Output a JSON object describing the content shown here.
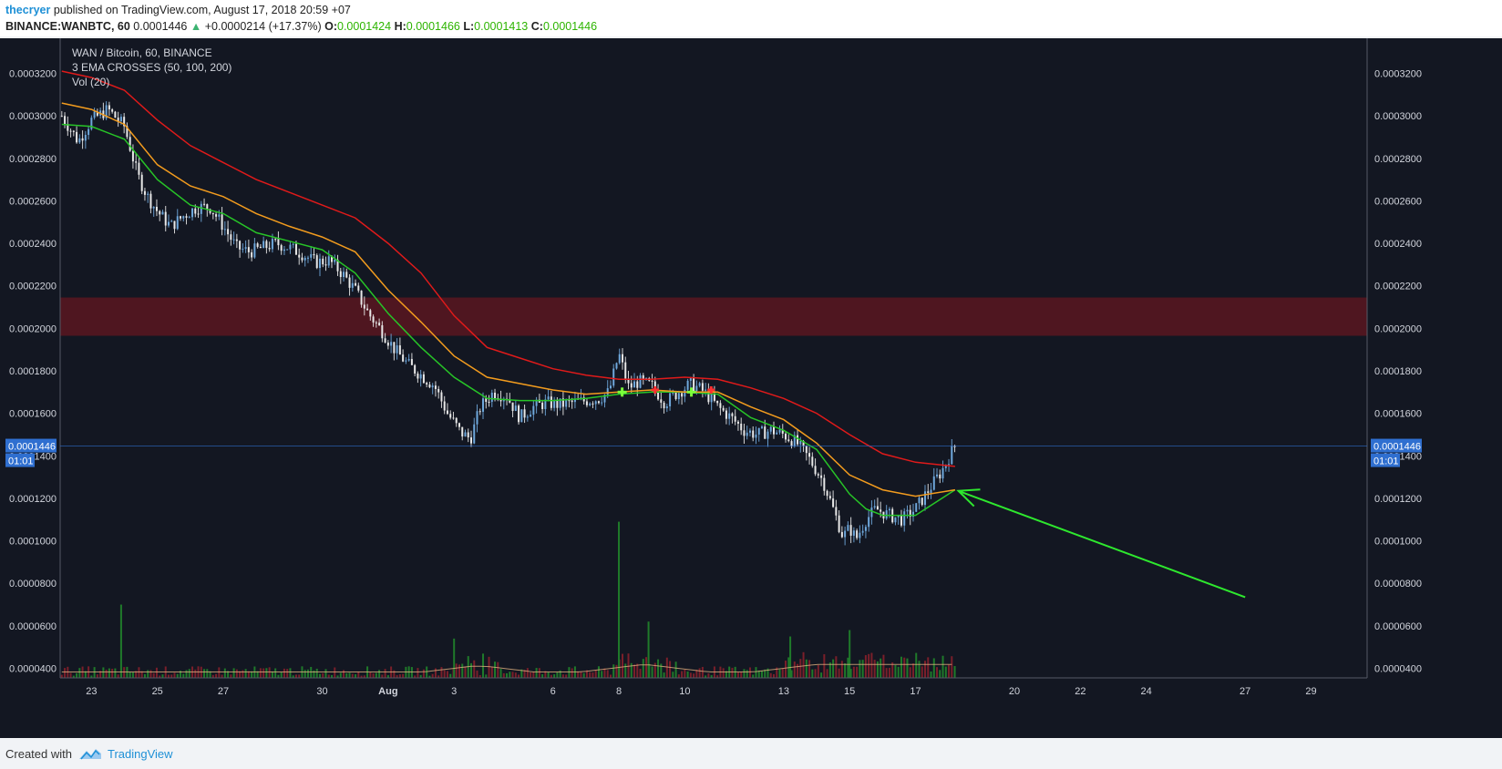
{
  "header": {
    "author": "thecryer",
    "published_text": "published on TradingView.com, August 17, 2018 20:59 +07",
    "symbol": "BINANCE:WANBTC, 60",
    "last": "0.0001446",
    "change_arrow": "▲",
    "change": "+0.0000214 (+17.37%)",
    "o_label": "O:",
    "o_value": "0.0001424",
    "h_label": "H:",
    "h_value": "0.0001466",
    "l_label": "L:",
    "l_value": "0.0001413",
    "c_label": "C:",
    "c_value": "0.0001446"
  },
  "legend": {
    "title": "WAN / Bitcoin, 60, BINANCE",
    "indicator": "3 EMA CROSSES (50, 100, 200)",
    "volume": "Vol (20)"
  },
  "price_tag": {
    "value": "0.0001446",
    "countdown": "01:01"
  },
  "footer": {
    "created_with": "Created with",
    "brand": "TradingView"
  },
  "colors": {
    "background": "#131722",
    "ema50": "#27c427",
    "ema100": "#f39c1e",
    "ema200": "#e01a1a",
    "resistance_zone": "#5a1620",
    "up_candle": "#6fa8dc",
    "down_candle": "#e8e8e8",
    "volume_up": "#1f7a2a",
    "volume_down": "#7a1f2a",
    "arrow": "#2ee82e",
    "price_tag": "#2f6fd0"
  },
  "chart_data": {
    "type": "line",
    "title": "WAN / Bitcoin, 60, BINANCE",
    "y_axis": {
      "ticks": [
        "0.0003200",
        "0.0003000",
        "0.0002800",
        "0.0002600",
        "0.0002400",
        "0.0002200",
        "0.0002000",
        "0.0001800",
        "0.0001600",
        "0.0001400",
        "0.0001200",
        "0.0001000",
        "0.0000800",
        "0.0000600",
        "0.0000400"
      ],
      "ylim": [
        3.55e-05,
        0.0003365
      ],
      "position": "both"
    },
    "x_axis": {
      "ticks": [
        {
          "label": "23",
          "day": 23
        },
        {
          "label": "25",
          "day": 25
        },
        {
          "label": "27",
          "day": 27
        },
        {
          "label": "30",
          "day": 30
        },
        {
          "label": "Aug",
          "day": 32,
          "bold": true
        },
        {
          "label": "3",
          "day": 34
        },
        {
          "label": "6",
          "day": 37
        },
        {
          "label": "8",
          "day": 39
        },
        {
          "label": "10",
          "day": 41
        },
        {
          "label": "13",
          "day": 44
        },
        {
          "label": "15",
          "day": 46
        },
        {
          "label": "17",
          "day": 48
        },
        {
          "label": "20",
          "day": 51
        },
        {
          "label": "22",
          "day": 53
        },
        {
          "label": "24",
          "day": 55
        },
        {
          "label": "27",
          "day": 58
        },
        {
          "label": "29",
          "day": 60
        }
      ],
      "xlim": [
        22.05,
        61.7
      ],
      "unit": "days since July 1, 2018"
    },
    "resistance_zone": [
      0.0001965,
      0.0002145
    ],
    "current_price": 0.0001446,
    "price": [
      [
        22.1,
        0.0003
      ],
      [
        22.6,
        0.000288
      ],
      [
        23.0,
        0.000298
      ],
      [
        23.5,
        0.000303
      ],
      [
        24.0,
        0.000295
      ],
      [
        24.4,
        0.000272
      ],
      [
        24.7,
        0.000262
      ],
      [
        25.0,
        0.000255
      ],
      [
        25.4,
        0.000248
      ],
      [
        25.8,
        0.000253
      ],
      [
        26.2,
        0.000257
      ],
      [
        26.6,
        0.000257
      ],
      [
        27.0,
        0.000248
      ],
      [
        27.4,
        0.000238
      ],
      [
        27.8,
        0.000236
      ],
      [
        28.2,
        0.000238
      ],
      [
        28.6,
        0.00024
      ],
      [
        29.0,
        0.000238
      ],
      [
        29.4,
        0.000235
      ],
      [
        29.8,
        0.000231
      ],
      [
        30.2,
        0.000232
      ],
      [
        30.6,
        0.000226
      ],
      [
        31.0,
        0.000218
      ],
      [
        31.4,
        0.000207
      ],
      [
        31.8,
        0.000199
      ],
      [
        32.2,
        0.00019
      ],
      [
        32.6,
        0.000183
      ],
      [
        33.0,
        0.000178
      ],
      [
        33.4,
        0.000173
      ],
      [
        33.8,
        0.00016
      ],
      [
        34.2,
        0.000151
      ],
      [
        34.5,
        0.000148
      ],
      [
        34.8,
        0.000163
      ],
      [
        35.2,
        0.00017
      ],
      [
        35.6,
        0.000168
      ],
      [
        36.0,
        0.000158
      ],
      [
        36.4,
        0.000163
      ],
      [
        36.8,
        0.000165
      ],
      [
        37.2,
        0.000164
      ],
      [
        37.6,
        0.000165
      ],
      [
        38.0,
        0.000166
      ],
      [
        38.4,
        0.000167
      ],
      [
        38.7,
        0.00017
      ],
      [
        39.0,
        0.000188
      ],
      [
        39.3,
        0.000172
      ],
      [
        39.6,
        0.000175
      ],
      [
        40.0,
        0.000173
      ],
      [
        40.4,
        0.000165
      ],
      [
        40.8,
        0.00017
      ],
      [
        41.2,
        0.000174
      ],
      [
        41.6,
        0.00017
      ],
      [
        42.0,
        0.000163
      ],
      [
        42.4,
        0.000158
      ],
      [
        42.8,
        0.000152
      ],
      [
        43.2,
        0.00015
      ],
      [
        43.6,
        0.000152
      ],
      [
        44.0,
        0.00015
      ],
      [
        44.4,
        0.000146
      ],
      [
        44.8,
        0.000138
      ],
      [
        45.2,
        0.000128
      ],
      [
        45.5,
        0.000115
      ],
      [
        45.8,
        0.000102
      ],
      [
        46.0,
        0.000106
      ],
      [
        46.2,
        0.000101
      ],
      [
        46.5,
        0.00011
      ],
      [
        46.8,
        0.000115
      ],
      [
        47.2,
        0.000112
      ],
      [
        47.6,
        0.00011
      ],
      [
        48.0,
        0.000115
      ],
      [
        48.4,
        0.000124
      ],
      [
        48.8,
        0.000133
      ],
      [
        49.1,
        0.000142
      ],
      [
        49.2,
        0.0001446
      ]
    ],
    "series": [
      {
        "name": "EMA 50",
        "color": "#27c427",
        "values": [
          [
            22.1,
            0.000296
          ],
          [
            23.0,
            0.000295
          ],
          [
            24.0,
            0.000289
          ],
          [
            25.0,
            0.00027
          ],
          [
            26.0,
            0.000258
          ],
          [
            27.0,
            0.000254
          ],
          [
            28.0,
            0.000245
          ],
          [
            29.0,
            0.000241
          ],
          [
            30.0,
            0.000237
          ],
          [
            31.0,
            0.000226
          ],
          [
            32.0,
            0.000207
          ],
          [
            33.0,
            0.000191
          ],
          [
            34.0,
            0.000177
          ],
          [
            35.0,
            0.000167
          ],
          [
            36.0,
            0.000166
          ],
          [
            37.0,
            0.000166
          ],
          [
            38.0,
            0.000167
          ],
          [
            39.0,
            0.000169
          ],
          [
            40.0,
            0.00017
          ],
          [
            41.0,
            0.00017
          ],
          [
            42.0,
            0.000169
          ],
          [
            43.0,
            0.000158
          ],
          [
            44.0,
            0.000152
          ],
          [
            45.0,
            0.000143
          ],
          [
            46.0,
            0.000122
          ],
          [
            46.5,
            0.000115
          ],
          [
            47.0,
            0.000112
          ],
          [
            48.0,
            0.000112
          ],
          [
            49.2,
            0.000124
          ]
        ]
      },
      {
        "name": "EMA 100",
        "color": "#f39c1e",
        "values": [
          [
            22.1,
            0.000306
          ],
          [
            23.0,
            0.000303
          ],
          [
            24.0,
            0.000296
          ],
          [
            25.0,
            0.000277
          ],
          [
            26.0,
            0.000267
          ],
          [
            27.0,
            0.000262
          ],
          [
            28.0,
            0.000254
          ],
          [
            29.0,
            0.000248
          ],
          [
            30.0,
            0.000243
          ],
          [
            31.0,
            0.000236
          ],
          [
            32.0,
            0.000218
          ],
          [
            33.0,
            0.000203
          ],
          [
            34.0,
            0.000187
          ],
          [
            35.0,
            0.000177
          ],
          [
            36.0,
            0.000174
          ],
          [
            37.0,
            0.000171
          ],
          [
            38.0,
            0.000169
          ],
          [
            39.0,
            0.00017
          ],
          [
            40.0,
            0.000171
          ],
          [
            41.0,
            0.00017
          ],
          [
            42.0,
            0.00017
          ],
          [
            43.0,
            0.000163
          ],
          [
            44.0,
            0.000157
          ],
          [
            45.0,
            0.000146
          ],
          [
            46.0,
            0.000131
          ],
          [
            47.0,
            0.000124
          ],
          [
            48.0,
            0.000121
          ],
          [
            49.2,
            0.000124
          ]
        ]
      },
      {
        "name": "EMA 200",
        "color": "#e01a1a",
        "values": [
          [
            22.1,
            0.000321
          ],
          [
            23.0,
            0.000318
          ],
          [
            24.0,
            0.000312
          ],
          [
            25.0,
            0.000298
          ],
          [
            26.0,
            0.000286
          ],
          [
            27.0,
            0.000278
          ],
          [
            28.0,
            0.00027
          ],
          [
            29.0,
            0.000264
          ],
          [
            30.0,
            0.000258
          ],
          [
            31.0,
            0.000252
          ],
          [
            32.0,
            0.00024
          ],
          [
            33.0,
            0.000226
          ],
          [
            34.0,
            0.000206
          ],
          [
            35.0,
            0.000191
          ],
          [
            36.0,
            0.000186
          ],
          [
            37.0,
            0.000181
          ],
          [
            38.0,
            0.000178
          ],
          [
            39.0,
            0.000176
          ],
          [
            40.0,
            0.000176
          ],
          [
            41.0,
            0.000177
          ],
          [
            42.0,
            0.000176
          ],
          [
            43.0,
            0.000172
          ],
          [
            44.0,
            0.000167
          ],
          [
            45.0,
            0.00016
          ],
          [
            46.0,
            0.00015
          ],
          [
            47.0,
            0.000141
          ],
          [
            48.0,
            0.000137
          ],
          [
            49.2,
            0.000135
          ]
        ]
      }
    ],
    "cross_markers": [
      {
        "day": 39.1,
        "value": 0.00017,
        "type": "buy"
      },
      {
        "day": 40.1,
        "value": 0.000171,
        "type": "sell"
      },
      {
        "day": 41.2,
        "value": 0.00017,
        "type": "buy"
      },
      {
        "day": 41.8,
        "value": 0.000171,
        "type": "sell"
      }
    ],
    "volume_spikes": [
      {
        "day": 23.9,
        "value": 7e-05
      },
      {
        "day": 39.0,
        "value": 0.000109
      },
      {
        "day": 39.9,
        "value": 6.2e-05
      },
      {
        "day": 46.0,
        "value": 5.8e-05
      },
      {
        "day": 44.2,
        "value": 5.5e-05
      },
      {
        "day": 34.0,
        "value": 5.4e-05
      }
    ],
    "arrow": {
      "from": [
        58.0,
        7.35e-05
      ],
      "to": [
        49.3,
        0.0001235
      ]
    }
  }
}
